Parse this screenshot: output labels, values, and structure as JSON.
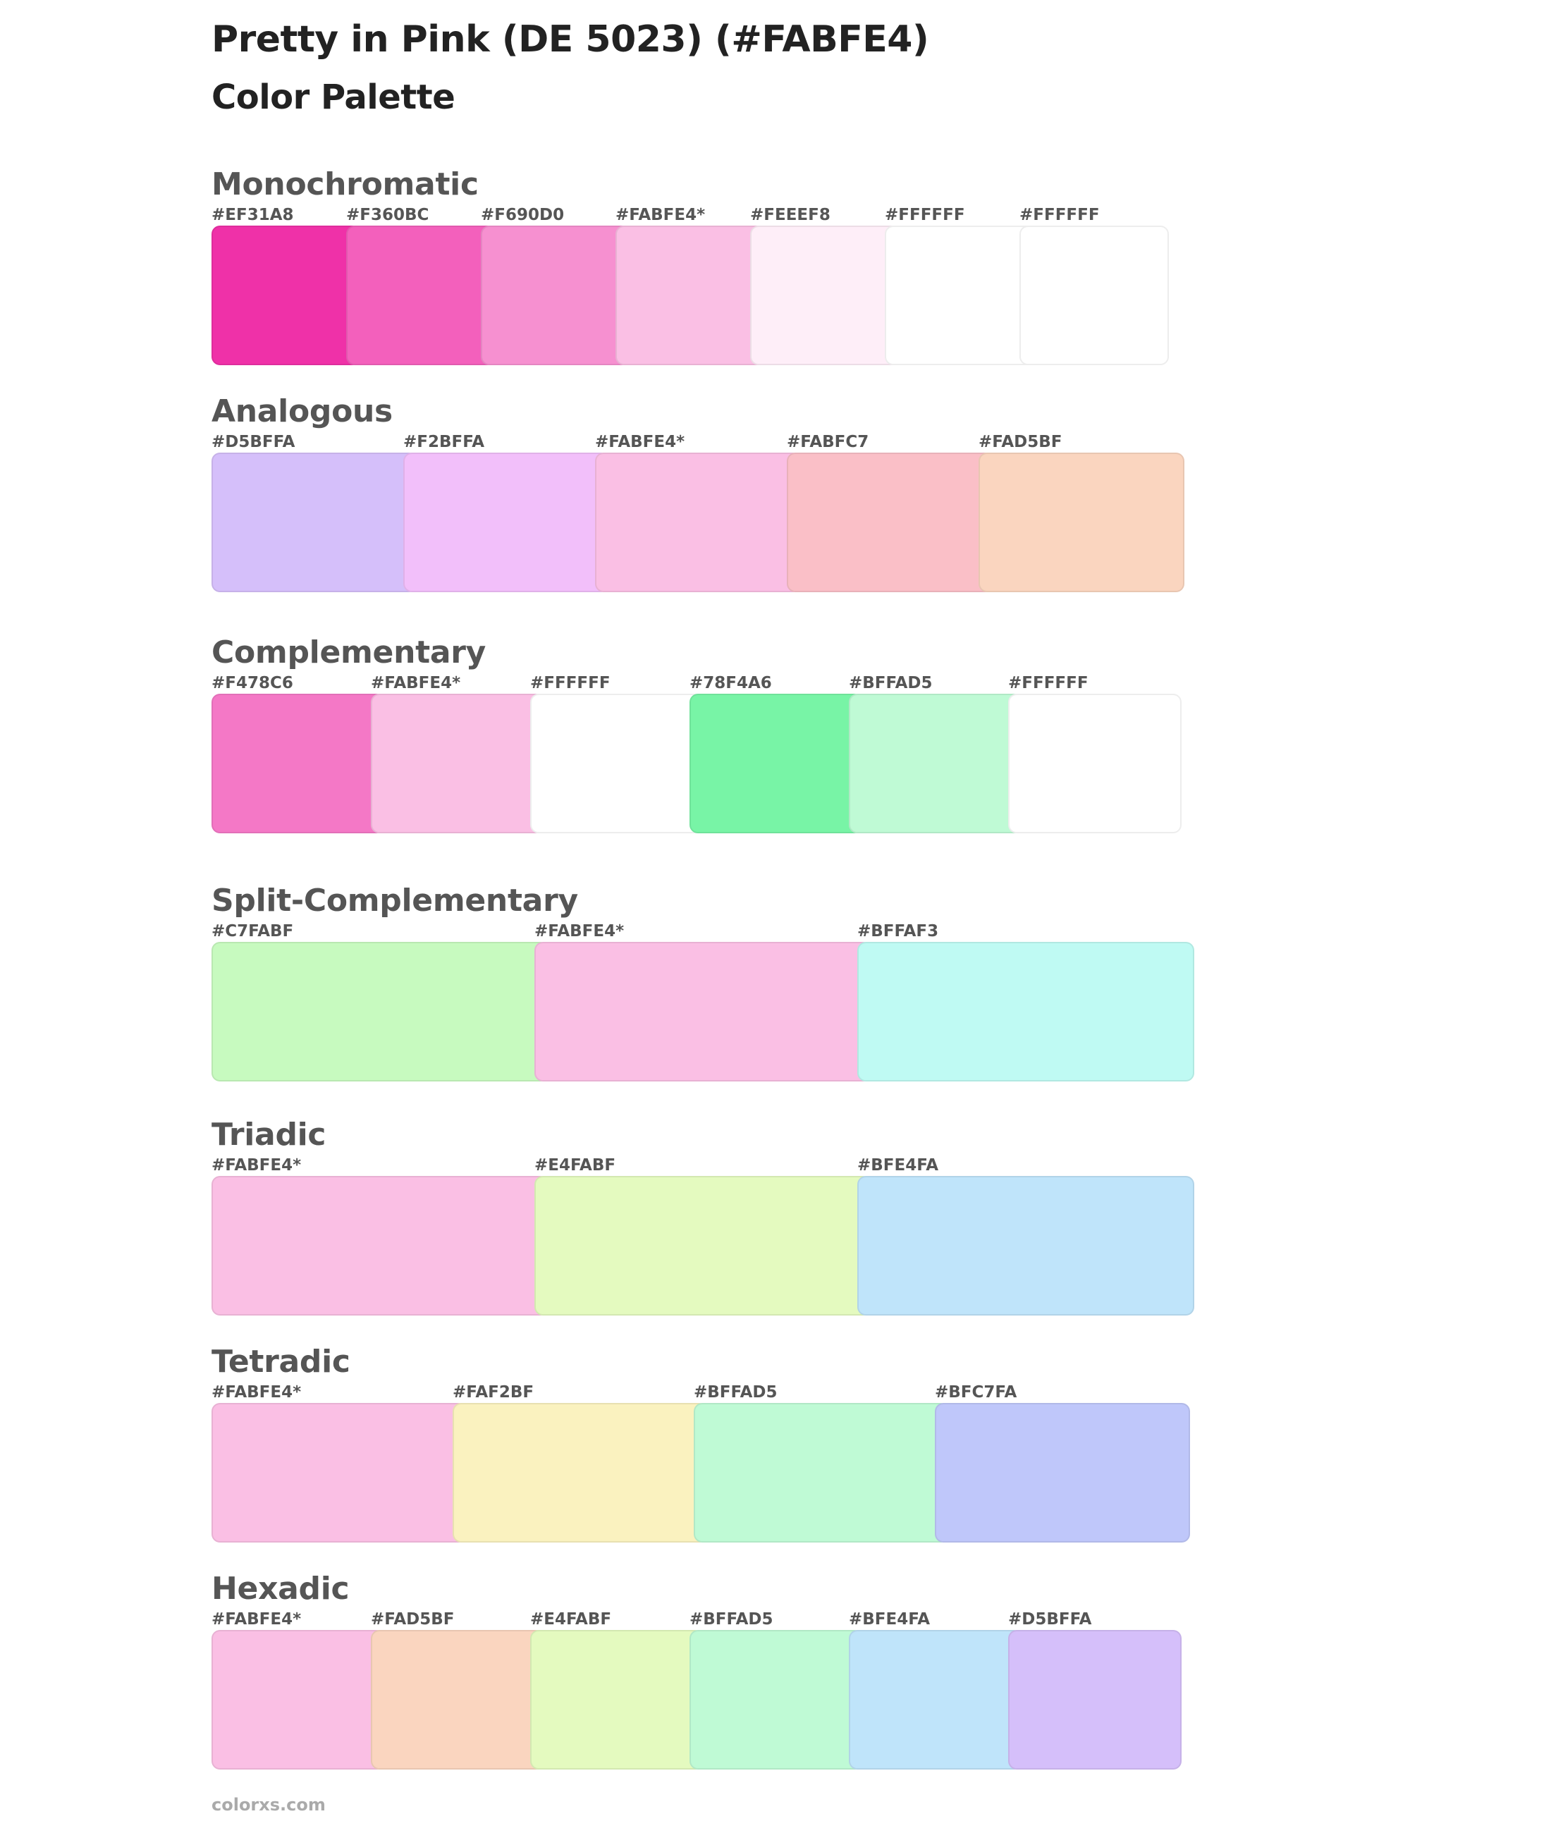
{
  "title": "Pretty in Pink (DE 5023) (#FABFE4)",
  "subtitle": "Color Palette",
  "sections": [
    {
      "name": "Monochromatic",
      "swatches": [
        {
          "label": "#EF31A8",
          "color": "#EF31A8"
        },
        {
          "label": "#F360BC",
          "color": "#F360BC"
        },
        {
          "label": "#F690D0",
          "color": "#F690D0"
        },
        {
          "label": "#FABFE4*",
          "color": "#FABFE4"
        },
        {
          "label": "#FEEEF8",
          "color": "#FEEEF8"
        },
        {
          "label": "#FFFFFF",
          "color": "#FFFFFF"
        },
        {
          "label": "#FFFFFF",
          "color": "#FFFFFF"
        }
      ]
    },
    {
      "name": "Analogous",
      "swatches": [
        {
          "label": "#D5BFFA",
          "color": "#D5BFFA"
        },
        {
          "label": "#F2BFFA",
          "color": "#F2BFFA"
        },
        {
          "label": "#FABFE4*",
          "color": "#FABFE4"
        },
        {
          "label": "#FABFC7",
          "color": "#FABFC7"
        },
        {
          "label": "#FAD5BF",
          "color": "#FAD5BF"
        }
      ]
    },
    {
      "name": "Complementary",
      "swatches": [
        {
          "label": "#F478C6",
          "color": "#F478C6"
        },
        {
          "label": "#FABFE4*",
          "color": "#FABFE4"
        },
        {
          "label": "#FFFFFF",
          "color": "#FFFFFF"
        },
        {
          "label": "#78F4A6",
          "color": "#78F4A6"
        },
        {
          "label": "#BFFAD5",
          "color": "#BFFAD5"
        },
        {
          "label": "#FFFFFF",
          "color": "#FFFFFF"
        }
      ]
    },
    {
      "name": "Split-Complementary",
      "swatches": [
        {
          "label": "#C7FABF",
          "color": "#C7FABF"
        },
        {
          "label": "#FABFE4*",
          "color": "#FABFE4"
        },
        {
          "label": "#BFFAF3",
          "color": "#BFFAF3"
        }
      ]
    },
    {
      "name": "Triadic",
      "swatches": [
        {
          "label": "#FABFE4*",
          "color": "#FABFE4"
        },
        {
          "label": "#E4FABF",
          "color": "#E4FABF"
        },
        {
          "label": "#BFE4FA",
          "color": "#BFE4FA"
        }
      ]
    },
    {
      "name": "Tetradic",
      "swatches": [
        {
          "label": "#FABFE4*",
          "color": "#FABFE4"
        },
        {
          "label": "#FAF2BF",
          "color": "#FAF2BF"
        },
        {
          "label": "#BFFAD5",
          "color": "#BFFAD5"
        },
        {
          "label": "#BFC7FA",
          "color": "#BFC7FA"
        }
      ]
    },
    {
      "name": "Hexadic",
      "swatches": [
        {
          "label": "#FABFE4*",
          "color": "#FABFE4"
        },
        {
          "label": "#FAD5BF",
          "color": "#FAD5BF"
        },
        {
          "label": "#E4FABF",
          "color": "#E4FABF"
        },
        {
          "label": "#BFFAD5",
          "color": "#BFFAD5"
        },
        {
          "label": "#BFE4FA",
          "color": "#BFE4FA"
        },
        {
          "label": "#D5BFFA",
          "color": "#D5BFFA"
        }
      ]
    }
  ],
  "footer": "colorxs.com"
}
